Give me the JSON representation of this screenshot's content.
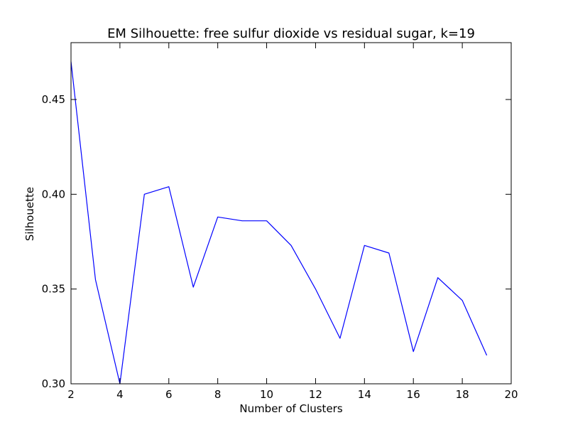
{
  "chart_data": {
    "type": "line",
    "title": "EM Silhouette: free sulfur dioxide vs residual sugar, k=19",
    "xlabel": "Number of Clusters",
    "ylabel": "Silhouette",
    "xlim": [
      2,
      20
    ],
    "ylim": [
      0.3,
      0.48
    ],
    "xticks": [
      2,
      4,
      6,
      8,
      10,
      12,
      14,
      16,
      18,
      20
    ],
    "yticks": [
      0.3,
      0.35,
      0.4,
      0.45
    ],
    "ytick_labels": [
      "0.30",
      "0.35",
      "0.40",
      "0.45"
    ],
    "grid": false,
    "legend": "none",
    "series": [
      {
        "color": "#0000ff",
        "x": [
          2,
          3,
          4,
          5,
          6,
          7,
          8,
          9,
          10,
          11,
          12,
          13,
          14,
          15,
          16,
          17,
          18,
          19
        ],
        "y": [
          0.47,
          0.355,
          0.3,
          0.4,
          0.404,
          0.351,
          0.388,
          0.386,
          0.386,
          0.373,
          0.35,
          0.324,
          0.373,
          0.369,
          0.317,
          0.356,
          0.344,
          0.315
        ]
      }
    ]
  }
}
